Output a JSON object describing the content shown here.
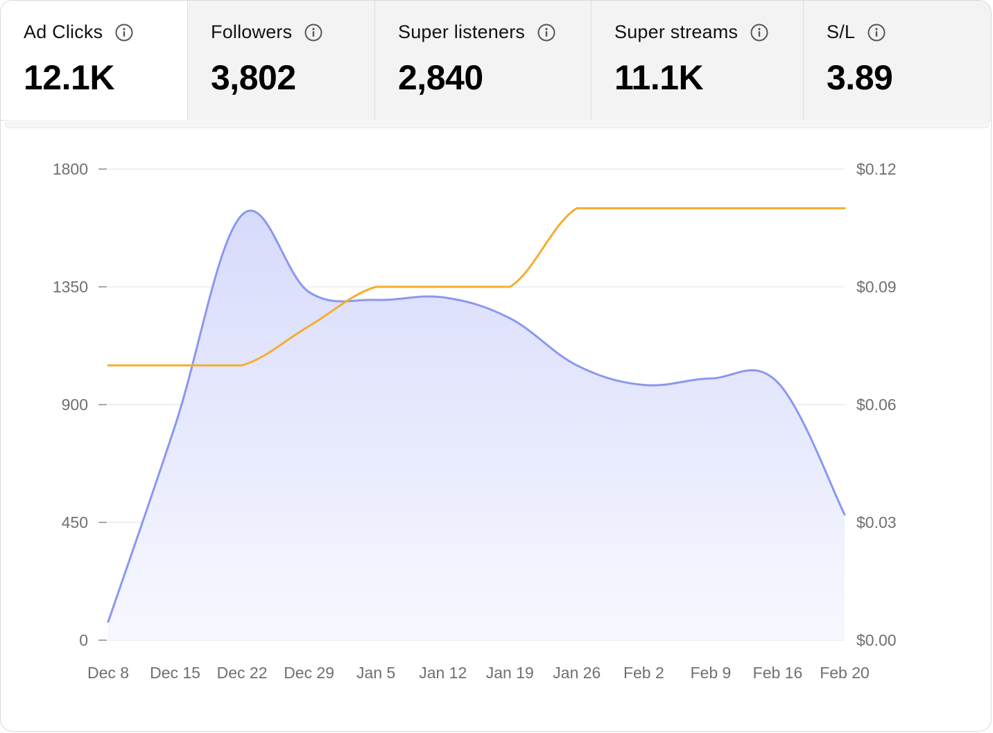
{
  "tabs": [
    {
      "label": "Ad Clicks",
      "value": "12.1K",
      "active": true
    },
    {
      "label": "Followers",
      "value": "3,802",
      "active": false
    },
    {
      "label": "Super listeners",
      "value": "2,840",
      "active": false
    },
    {
      "label": "Super streams",
      "value": "11.1K",
      "active": false
    },
    {
      "label": "S/L",
      "value": "3.89",
      "active": false
    }
  ],
  "colors": {
    "area_line": "#8b97f0",
    "area_fill_top": "#d7dbfb",
    "area_fill_bottom": "#f7f8ff",
    "cost_line": "#f5ae2e",
    "grid": "#ececf0"
  },
  "chart_data": {
    "type": "area",
    "x": [
      "Dec 8",
      "Dec 15",
      "Dec 22",
      "Dec 29",
      "Jan 5",
      "Jan 12",
      "Jan 19",
      "Jan 26",
      "Feb 2",
      "Feb 9",
      "Feb 16",
      "Feb 20"
    ],
    "x_tick_labels": [
      "Dec 8",
      "Dec 15",
      "Dec 22",
      "Dec 29",
      "Jan 5",
      "Jan 12",
      "Jan 19",
      "Jan 26",
      "Feb 2",
      "Feb 9",
      "Feb 16",
      "Feb 20"
    ],
    "series": [
      {
        "axis": "left",
        "type": "area",
        "color": "#8b97f0",
        "values": [
          70,
          820,
          1625,
          1330,
          1300,
          1310,
          1230,
          1050,
          975,
          1000,
          985,
          480
        ]
      },
      {
        "axis": "right",
        "type": "line",
        "color": "#f5ae2e",
        "values": [
          0.07,
          0.07,
          0.07,
          0.08,
          0.09,
          0.09,
          0.09,
          0.11,
          0.11,
          0.11,
          0.11,
          0.11
        ]
      }
    ],
    "y_left": {
      "ticks": [
        0,
        450,
        900,
        1350,
        1800
      ],
      "tick_labels": [
        "0",
        "450",
        "900",
        "1350",
        "1800"
      ],
      "range": [
        0,
        1800
      ]
    },
    "y_right": {
      "ticks": [
        0,
        0.03,
        0.06,
        0.09,
        0.12
      ],
      "tick_labels": [
        "$0.00",
        "$0.03",
        "$0.06",
        "$0.09",
        "$0.12"
      ],
      "range": [
        0,
        0.12
      ]
    },
    "grid": true,
    "legend": "none"
  }
}
